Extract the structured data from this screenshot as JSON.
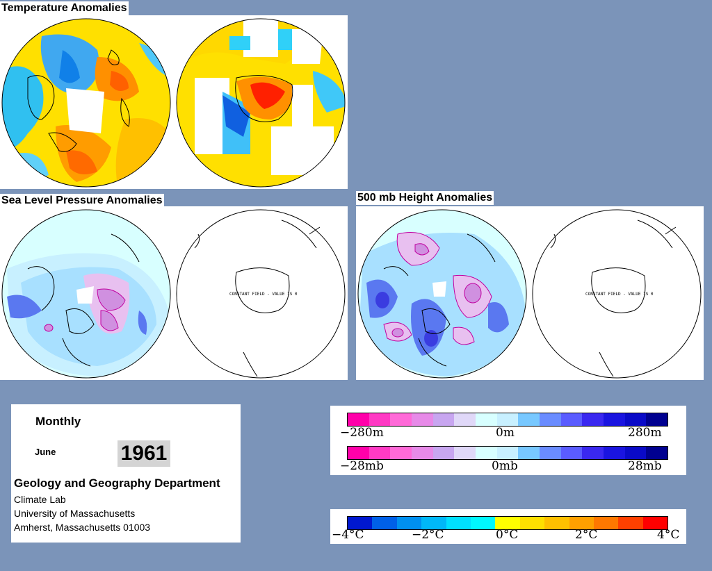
{
  "titles": {
    "temperature": "Temperature Anomalies",
    "slp": "Sea Level Pressure Anomalies",
    "height500": "500 mb Height Anomalies"
  },
  "constant_field_note": "CONSTANT FIELD - VALUE IS 0",
  "info": {
    "mode": "Monthly",
    "month": "June",
    "year": "1961",
    "department": "Geology and Geography Department",
    "address_lines": [
      "Climate Lab",
      "University of Massachusetts",
      "Amherst, Massachusetts 01003"
    ]
  },
  "legends": {
    "height": {
      "min": "−280m",
      "mid": "0m",
      "max": "280m"
    },
    "pressure": {
      "min": "−28mb",
      "mid": "0mb",
      "max": "28mb"
    },
    "temperature": {
      "labels": [
        "−4°C",
        "−2°C",
        "0°C",
        "2°C",
        "4°C"
      ]
    }
  },
  "colors": {
    "anomaly_scale": [
      "#ff00aa",
      "#ff3ac4",
      "#ff6ad8",
      "#e78ae8",
      "#c8a6f0",
      "#e0d8f8",
      "#d8ffff",
      "#c8f0ff",
      "#78c8ff",
      "#6a8cff",
      "#5a5cff",
      "#3a28f0",
      "#1a14e0",
      "#0a0ac8",
      "#000090"
    ],
    "temperature_scale": [
      "#0018d0",
      "#0060e8",
      "#0090f0",
      "#00b8f8",
      "#00e0ff",
      "#00f8ff",
      "#ffff00",
      "#ffe000",
      "#ffc000",
      "#ffa000",
      "#ff7800",
      "#ff4000",
      "#ff0000"
    ],
    "background": "#7b94b9"
  }
}
